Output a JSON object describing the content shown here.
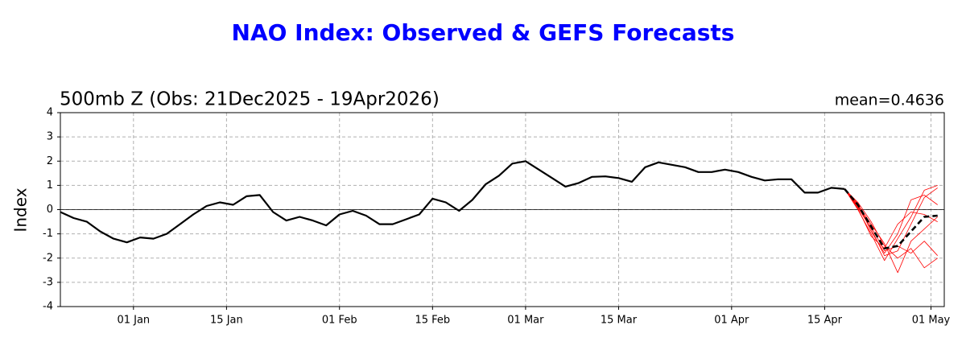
{
  "chart_data": {
    "type": "line",
    "title": "NAO Index: Observed & GEFS Forecasts",
    "subtitle": "500mb Z (Obs: 21Dec2025 - 19Apr2026)",
    "annotation": "mean=0.4636",
    "ylabel": "Index",
    "x": [
      "21 Dec",
      "23 Dec",
      "25 Dec",
      "27 Dec",
      "29 Dec",
      "31 Dec",
      "02 Jan",
      "04 Jan",
      "06 Jan",
      "08 Jan",
      "10 Jan",
      "12 Jan",
      "14 Jan",
      "16 Jan",
      "18 Jan",
      "20 Jan",
      "22 Jan",
      "24 Jan",
      "26 Jan",
      "28 Jan",
      "30 Jan",
      "01 Feb",
      "03 Feb",
      "05 Feb",
      "07 Feb",
      "09 Feb",
      "11 Feb",
      "13 Feb",
      "15 Feb",
      "17 Feb",
      "19 Feb",
      "21 Feb",
      "23 Feb",
      "25 Feb",
      "27 Feb",
      "01 Mar",
      "03 Mar",
      "05 Mar",
      "07 Mar",
      "09 Mar",
      "11 Mar",
      "13 Mar",
      "15 Mar",
      "17 Mar",
      "19 Mar",
      "21 Mar",
      "23 Mar",
      "25 Mar",
      "27 Mar",
      "29 Mar",
      "31 Mar",
      "02 Apr",
      "04 Apr",
      "06 Apr",
      "08 Apr",
      "10 Apr",
      "12 Apr",
      "14 Apr",
      "16 Apr",
      "18 Apr",
      "20 Apr",
      "22 Apr",
      "24 Apr",
      "26 Apr",
      "28 Apr",
      "30 Apr",
      "02 May"
    ],
    "xlim": [
      "21 Dec",
      "03 May"
    ],
    "xticks": [
      "01 Jan",
      "15 Jan",
      "01 Feb",
      "15 Feb",
      "01 Mar",
      "15 Mar",
      "01 Apr",
      "15 Apr",
      "01 May"
    ],
    "ylim": [
      -4,
      4
    ],
    "yticks": [
      -4,
      -3,
      -2,
      -1,
      0,
      1,
      2,
      3,
      4
    ],
    "grid": true,
    "zero_line": true,
    "series": [
      {
        "color": "#ff0000",
        "linewidth": 0.8,
        "style": "solid",
        "values": [
          null,
          null,
          null,
          null,
          null,
          null,
          null,
          null,
          null,
          null,
          null,
          null,
          null,
          null,
          null,
          null,
          null,
          null,
          null,
          null,
          null,
          null,
          null,
          null,
          null,
          null,
          null,
          null,
          null,
          null,
          null,
          null,
          null,
          null,
          null,
          null,
          null,
          null,
          null,
          null,
          null,
          null,
          null,
          null,
          null,
          null,
          null,
          null,
          null,
          null,
          null,
          null,
          null,
          null,
          null,
          null,
          null,
          null,
          null,
          0.85,
          0.1,
          -0.8,
          -1.9,
          -1.7,
          -0.6,
          0.5,
          0.9
        ]
      },
      {
        "color": "#ff0000",
        "linewidth": 0.8,
        "style": "solid",
        "values": [
          null,
          null,
          null,
          null,
          null,
          null,
          null,
          null,
          null,
          null,
          null,
          null,
          null,
          null,
          null,
          null,
          null,
          null,
          null,
          null,
          null,
          null,
          null,
          null,
          null,
          null,
          null,
          null,
          null,
          null,
          null,
          null,
          null,
          null,
          null,
          null,
          null,
          null,
          null,
          null,
          null,
          null,
          null,
          null,
          null,
          null,
          null,
          null,
          null,
          null,
          null,
          null,
          null,
          null,
          null,
          null,
          null,
          null,
          null,
          0.85,
          0.3,
          -0.5,
          -1.5,
          -2.0,
          -1.6,
          -2.4,
          -2.0
        ]
      },
      {
        "color": "#ff0000",
        "linewidth": 0.8,
        "style": "solid",
        "values": [
          null,
          null,
          null,
          null,
          null,
          null,
          null,
          null,
          null,
          null,
          null,
          null,
          null,
          null,
          null,
          null,
          null,
          null,
          null,
          null,
          null,
          null,
          null,
          null,
          null,
          null,
          null,
          null,
          null,
          null,
          null,
          null,
          null,
          null,
          null,
          null,
          null,
          null,
          null,
          null,
          null,
          null,
          null,
          null,
          null,
          null,
          null,
          null,
          null,
          null,
          null,
          null,
          null,
          null,
          null,
          null,
          null,
          null,
          null,
          0.85,
          0.0,
          -1.0,
          -2.1,
          -1.2,
          -0.3,
          0.8,
          1.0
        ]
      },
      {
        "color": "#ff0000",
        "linewidth": 0.8,
        "style": "solid",
        "values": [
          null,
          null,
          null,
          null,
          null,
          null,
          null,
          null,
          null,
          null,
          null,
          null,
          null,
          null,
          null,
          null,
          null,
          null,
          null,
          null,
          null,
          null,
          null,
          null,
          null,
          null,
          null,
          null,
          null,
          null,
          null,
          null,
          null,
          null,
          null,
          null,
          null,
          null,
          null,
          null,
          null,
          null,
          null,
          null,
          null,
          null,
          null,
          null,
          null,
          null,
          null,
          null,
          null,
          null,
          null,
          null,
          null,
          null,
          null,
          0.85,
          0.2,
          -0.6,
          -1.4,
          -2.6,
          -1.3,
          -0.8,
          -0.3
        ]
      },
      {
        "color": "#ff0000",
        "linewidth": 0.8,
        "style": "solid",
        "values": [
          null,
          null,
          null,
          null,
          null,
          null,
          null,
          null,
          null,
          null,
          null,
          null,
          null,
          null,
          null,
          null,
          null,
          null,
          null,
          null,
          null,
          null,
          null,
          null,
          null,
          null,
          null,
          null,
          null,
          null,
          null,
          null,
          null,
          null,
          null,
          null,
          null,
          null,
          null,
          null,
          null,
          null,
          null,
          null,
          null,
          null,
          null,
          null,
          null,
          null,
          null,
          null,
          null,
          null,
          null,
          null,
          null,
          null,
          null,
          0.85,
          0.25,
          -0.9,
          -1.8,
          -1.0,
          0.4,
          0.6,
          0.2
        ]
      },
      {
        "color": "#ff0000",
        "linewidth": 0.8,
        "style": "solid",
        "values": [
          null,
          null,
          null,
          null,
          null,
          null,
          null,
          null,
          null,
          null,
          null,
          null,
          null,
          null,
          null,
          null,
          null,
          null,
          null,
          null,
          null,
          null,
          null,
          null,
          null,
          null,
          null,
          null,
          null,
          null,
          null,
          null,
          null,
          null,
          null,
          null,
          null,
          null,
          null,
          null,
          null,
          null,
          null,
          null,
          null,
          null,
          null,
          null,
          null,
          null,
          null,
          null,
          null,
          null,
          null,
          null,
          null,
          null,
          null,
          0.85,
          0.15,
          -0.7,
          -1.7,
          -1.5,
          -1.8,
          -1.3,
          -1.9
        ]
      },
      {
        "color": "#ff0000",
        "linewidth": 0.8,
        "style": "solid",
        "values": [
          null,
          null,
          null,
          null,
          null,
          null,
          null,
          null,
          null,
          null,
          null,
          null,
          null,
          null,
          null,
          null,
          null,
          null,
          null,
          null,
          null,
          null,
          null,
          null,
          null,
          null,
          null,
          null,
          null,
          null,
          null,
          null,
          null,
          null,
          null,
          null,
          null,
          null,
          null,
          null,
          null,
          null,
          null,
          null,
          null,
          null,
          null,
          null,
          null,
          null,
          null,
          null,
          null,
          null,
          null,
          null,
          null,
          null,
          null,
          0.85,
          0.05,
          -1.1,
          -1.6,
          -0.6,
          -0.1,
          -0.2,
          -0.5
        ]
      },
      {
        "color": "#000000",
        "linewidth": 2.2,
        "style": "solid",
        "values": [
          -0.1,
          -0.35,
          -0.5,
          -0.9,
          -1.2,
          -1.35,
          -1.15,
          -1.2,
          -1.0,
          -0.6,
          -0.2,
          0.15,
          0.3,
          0.2,
          0.55,
          0.6,
          -0.1,
          -0.45,
          -0.3,
          -0.45,
          -0.65,
          -0.2,
          -0.05,
          -0.25,
          -0.6,
          -0.6,
          -0.4,
          -0.2,
          0.45,
          0.3,
          -0.05,
          0.4,
          1.05,
          1.4,
          1.9,
          2.0,
          1.65,
          1.3,
          0.95,
          1.1,
          1.35,
          1.37,
          1.3,
          1.15,
          1.75,
          1.95,
          1.85,
          1.75,
          1.55,
          1.55,
          1.65,
          1.55,
          1.35,
          1.2,
          1.25,
          1.25,
          0.7,
          0.7,
          0.9,
          0.85,
          null,
          null,
          null,
          null,
          null,
          null,
          null
        ]
      },
      {
        "color": "#000000",
        "linewidth": 2.6,
        "style": "dashed",
        "values": [
          null,
          null,
          null,
          null,
          null,
          null,
          null,
          null,
          null,
          null,
          null,
          null,
          null,
          null,
          null,
          null,
          null,
          null,
          null,
          null,
          null,
          null,
          null,
          null,
          null,
          null,
          null,
          null,
          null,
          null,
          null,
          null,
          null,
          null,
          null,
          null,
          null,
          null,
          null,
          null,
          null,
          null,
          null,
          null,
          null,
          null,
          null,
          null,
          null,
          null,
          null,
          null,
          null,
          null,
          null,
          null,
          null,
          null,
          null,
          0.85,
          0.2,
          -0.7,
          -1.6,
          -1.5,
          -0.9,
          -0.3,
          -0.25
        ]
      }
    ]
  }
}
